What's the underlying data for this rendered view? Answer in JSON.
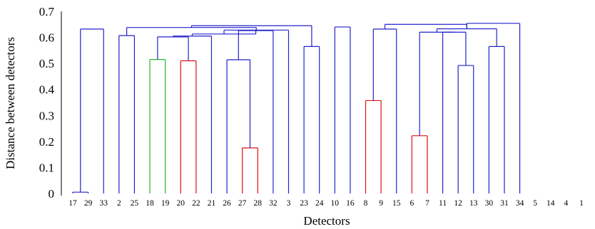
{
  "chart_data": {
    "type": "dendrogram",
    "xlabel": "Detectors",
    "ylabel": "Distance between detectors",
    "ylim": [
      0,
      0.7
    ],
    "yticks": [
      0,
      0.1,
      0.2,
      0.3,
      0.4,
      0.5,
      0.6,
      0.7
    ],
    "leaf_order": [
      "17",
      "29",
      "33",
      "2",
      "25",
      "18",
      "19",
      "20",
      "22",
      "21",
      "26",
      "27",
      "28",
      "32",
      "3",
      "23",
      "24",
      "10",
      "16",
      "8",
      "9",
      "15",
      "6",
      "7",
      "11",
      "12",
      "13",
      "30",
      "31",
      "34",
      "5",
      "14",
      "4",
      "1"
    ],
    "merges": [
      {
        "left": "17",
        "right": "29",
        "height": 0.005,
        "color": "#2222cc"
      },
      {
        "left": "27",
        "right": "28",
        "height": 0.175,
        "color": "#dd1111"
      },
      {
        "left": "6",
        "right": "7",
        "height": 0.222,
        "color": "#dd1111"
      },
      {
        "left": "8",
        "right": "9",
        "height": 0.357,
        "color": "#dd1111"
      },
      {
        "left": "12",
        "right": "13",
        "height": 0.492,
        "color": "#2222cc"
      },
      {
        "left": "20",
        "right": "22",
        "height": 0.51,
        "color": "#dd1111"
      },
      {
        "left": "26",
        "right": "27-28",
        "height": 0.514,
        "color": "#2222cc"
      },
      {
        "left": "18",
        "right": "19",
        "height": 0.515,
        "color": "#22bb22"
      },
      {
        "left": "23",
        "right": "24",
        "height": 0.565,
        "color": "#2222cc"
      },
      {
        "left": "30",
        "right": "31",
        "height": 0.565,
        "color": "#2222cc"
      },
      {
        "left": "18-19",
        "right": "20-22",
        "height": 0.602,
        "color": "#2222cc"
      },
      {
        "left": "18-22",
        "right": "21",
        "height": 0.605,
        "color": "#2222cc"
      },
      {
        "left": "2",
        "right": "25",
        "height": 0.607,
        "color": "#2222cc"
      },
      {
        "left": "11",
        "right": "12-13",
        "height": 0.62,
        "color": "#2222cc"
      },
      {
        "left": "6-7",
        "right": "11-13",
        "height": 0.62,
        "color": "#2222cc"
      },
      {
        "left": "26-28",
        "right": "32",
        "height": 0.626,
        "color": "#2222cc"
      },
      {
        "left": "8-9",
        "right": "15",
        "height": 0.632,
        "color": "#2222cc"
      },
      {
        "left": "17-29",
        "right": "33",
        "height": 0.632,
        "color": "#2222cc"
      },
      {
        "left": "6-13",
        "right": "30-31",
        "height": 0.633,
        "color": "#2222cc"
      },
      {
        "left": "18-21",
        "right": "26-32",
        "height": 0.613,
        "color": "#2222cc"
      },
      {
        "left": "18-32",
        "right": "3",
        "height": 0.628,
        "color": "#2222cc"
      },
      {
        "left": "2-25",
        "right": "18-3",
        "height": 0.638,
        "color": "#2222cc"
      },
      {
        "left": "10",
        "right": "16",
        "height": 0.64,
        "color": "#2222cc"
      },
      {
        "left": "2-3",
        "right": "23-24",
        "height": 0.645,
        "color": "#2222cc"
      },
      {
        "left": "8-15",
        "right": "6-31",
        "height": 0.65,
        "color": "#2222cc"
      },
      {
        "left": "6-31",
        "right": "34",
        "height": 0.654,
        "color": "#2222cc"
      },
      {
        "left": "10-16",
        "right": "8-34",
        "height": 0.652,
        "color": "#2222cc"
      },
      {
        "left": "2-24",
        "right": "10-34",
        "height": 0.647,
        "color": "#2222cc"
      },
      {
        "left": "17-33",
        "right": "2-34",
        "height": 0.636,
        "color": "#2222cc"
      },
      {
        "left": "17-34",
        "right": "5",
        "height": 0.668,
        "color": "#2222cc"
      },
      {
        "left": "17-5",
        "right": "14",
        "height": 0.678,
        "color": "#2222cc"
      },
      {
        "left": "17-14",
        "right": "4",
        "height": 0.687,
        "color": "#2222cc"
      },
      {
        "left": "17-4",
        "right": "1",
        "height": 0.692,
        "color": "#2222cc"
      }
    ]
  }
}
